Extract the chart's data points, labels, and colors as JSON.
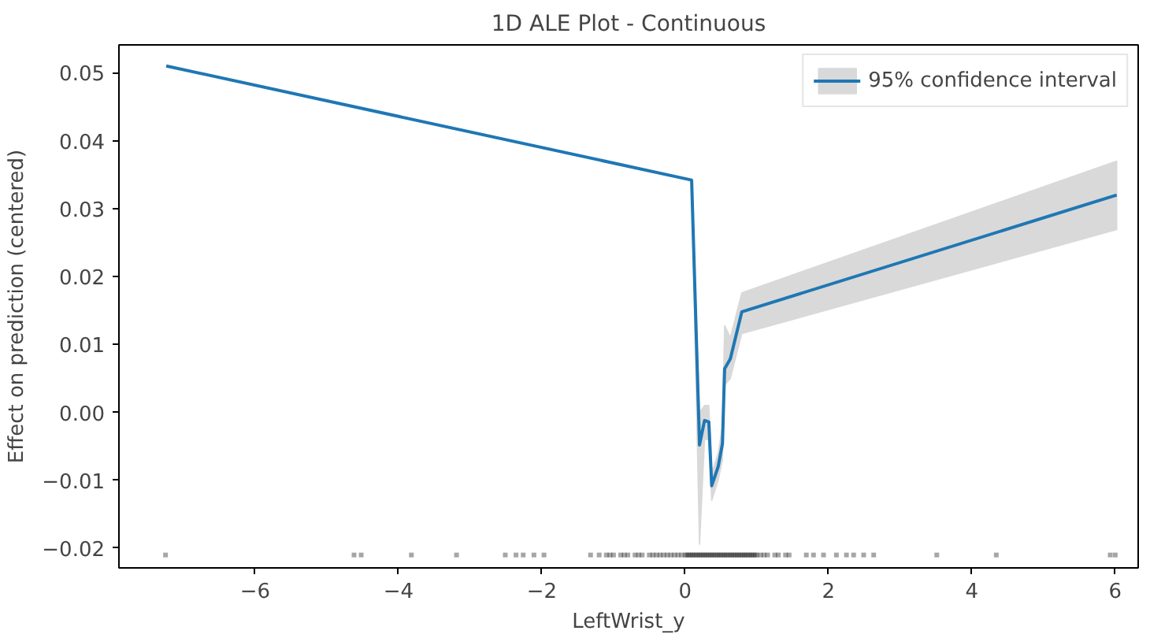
{
  "chart_data": {
    "type": "line",
    "title": "1D ALE Plot - Continuous",
    "xlabel": "LeftWrist_y",
    "ylabel": "Effect on prediction (centered)",
    "xlim": [
      -7.9,
      6.32
    ],
    "ylim": [
      -0.0229,
      0.0541
    ],
    "xticks": [
      {
        "value": -6,
        "label": "−6"
      },
      {
        "value": -4,
        "label": "−4"
      },
      {
        "value": -2,
        "label": "−2"
      },
      0,
      2,
      4,
      6
    ],
    "yticks": [
      {
        "value": -0.02,
        "label": "−0.02"
      },
      {
        "value": -0.01,
        "label": "−0.01"
      },
      {
        "value": 0,
        "label": "0.00"
      },
      {
        "value": 0.01,
        "label": "0.01"
      },
      {
        "value": 0.02,
        "label": "0.02"
      },
      {
        "value": 0.03,
        "label": "0.03"
      },
      {
        "value": 0.04,
        "label": "0.04"
      },
      {
        "value": 0.05,
        "label": "0.05"
      }
    ],
    "grid": false,
    "legend": "top right",
    "line_style": "solid",
    "series": [
      {
        "name": "95% confidence interval",
        "color": "#1f77b4",
        "x": [
          -7.24,
          0.09,
          0.2,
          0.27,
          0.33,
          0.37,
          0.46,
          0.52,
          0.55,
          0.63,
          0.79,
          6.02
        ],
        "values": [
          0.051,
          0.0342,
          -0.0048,
          -0.0012,
          -0.0014,
          -0.0108,
          -0.008,
          -0.0046,
          0.0064,
          0.0079,
          0.0148,
          0.032
        ],
        "upper": [
          0.051,
          0.0342,
          0.0,
          0.001,
          0.001,
          -0.009,
          -0.006,
          -0.002,
          0.0128,
          0.011,
          0.0176,
          0.037
        ],
        "lower": [
          0.051,
          0.0342,
          -0.0195,
          -0.004,
          -0.004,
          -0.013,
          -0.01,
          -0.007,
          0.004,
          0.005,
          0.0116,
          0.0269
        ]
      },
      {
        "type": "scatter",
        "marker": "square",
        "color": "#000000",
        "x": [
          -7.25,
          -4.62,
          -4.52,
          -3.82,
          -3.19,
          -2.51,
          -2.36,
          -2.26,
          -2.11,
          -1.97,
          -1.32,
          -1.2,
          -1.1,
          -1.05,
          -1.0,
          -0.9,
          -0.85,
          -0.8,
          -0.7,
          -0.65,
          -0.6,
          -0.5,
          -0.45,
          -0.4,
          -0.35,
          -0.3,
          -0.25,
          -0.2,
          -0.15,
          -0.1,
          -0.05,
          0.0,
          0.025,
          0.05,
          0.075,
          0.1,
          0.125,
          0.15,
          0.175,
          0.2,
          0.225,
          0.25,
          0.275,
          0.3,
          0.325,
          0.35,
          0.375,
          0.4,
          0.425,
          0.45,
          0.475,
          0.5,
          0.525,
          0.55,
          0.575,
          0.6,
          0.625,
          0.65,
          0.675,
          0.7,
          0.725,
          0.75,
          0.775,
          0.8,
          0.825,
          0.85,
          0.875,
          0.9,
          0.925,
          0.95,
          0.975,
          1.0,
          1.05,
          1.1,
          1.15,
          1.25,
          1.3,
          1.4,
          1.45,
          1.69,
          1.79,
          1.93,
          2.11,
          2.25,
          2.35,
          2.49,
          2.63,
          3.51,
          4.34,
          5.93,
          6.0
        ],
        "values": [
          -0.021,
          -0.021,
          -0.021,
          -0.021,
          -0.021,
          -0.021,
          -0.021,
          -0.021,
          -0.021,
          -0.021,
          -0.021,
          -0.021,
          -0.021,
          -0.021,
          -0.021,
          -0.021,
          -0.021,
          -0.021,
          -0.021,
          -0.021,
          -0.021,
          -0.021,
          -0.021,
          -0.021,
          -0.021,
          -0.021,
          -0.021,
          -0.021,
          -0.021,
          -0.021,
          -0.021,
          -0.021,
          -0.021,
          -0.021,
          -0.021,
          -0.021,
          -0.021,
          -0.021,
          -0.021,
          -0.021,
          -0.021,
          -0.021,
          -0.021,
          -0.021,
          -0.021,
          -0.021,
          -0.021,
          -0.021,
          -0.021,
          -0.021,
          -0.021,
          -0.021,
          -0.021,
          -0.021,
          -0.021,
          -0.021,
          -0.021,
          -0.021,
          -0.021,
          -0.021,
          -0.021,
          -0.021,
          -0.021,
          -0.021,
          -0.021,
          -0.021,
          -0.021,
          -0.021,
          -0.021,
          -0.021,
          -0.021,
          -0.021,
          -0.021,
          -0.021,
          -0.021,
          -0.021,
          -0.021,
          -0.021,
          -0.021,
          -0.021,
          -0.021,
          -0.021,
          -0.021,
          -0.021,
          -0.021,
          -0.021,
          -0.021,
          -0.021,
          -0.021,
          -0.021,
          -0.021
        ]
      }
    ]
  }
}
